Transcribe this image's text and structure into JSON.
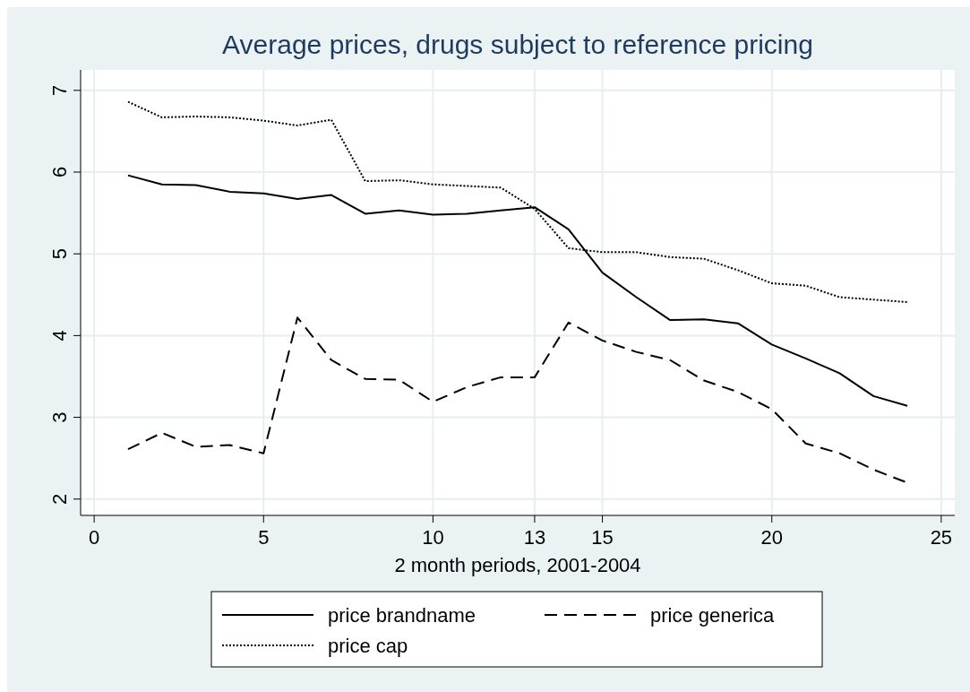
{
  "chart_data": {
    "type": "line",
    "title": "Average prices, drugs subject to reference pricing",
    "xlabel": "2 month periods, 2001-2004",
    "x": [
      1,
      2,
      3,
      4,
      5,
      6,
      7,
      8,
      9,
      10,
      11,
      12,
      13,
      14,
      15,
      16,
      17,
      18,
      19,
      20,
      21,
      22,
      23,
      24
    ],
    "series": [
      {
        "name": "price brandname",
        "color": "#000000",
        "line_style": "solid",
        "values": [
          5.96,
          5.85,
          5.84,
          5.76,
          5.74,
          5.67,
          5.72,
          5.49,
          5.53,
          5.48,
          5.49,
          5.53,
          5.57,
          5.3,
          4.77,
          4.47,
          4.19,
          4.2,
          4.15,
          3.89,
          3.72,
          3.54,
          3.26,
          3.14
        ]
      },
      {
        "name": "price generica",
        "color": "#000000",
        "line_style": "dashed",
        "values": [
          2.61,
          2.81,
          2.64,
          2.66,
          2.56,
          4.22,
          3.7,
          3.47,
          3.46,
          3.19,
          3.37,
          3.49,
          3.49,
          4.16,
          3.94,
          3.8,
          3.7,
          3.45,
          3.31,
          3.1,
          2.68,
          2.56,
          2.36,
          2.2
        ]
      },
      {
        "name": "price cap",
        "color": "#000000",
        "line_style": "dotted",
        "values": [
          6.86,
          6.67,
          6.68,
          6.67,
          6.63,
          6.57,
          6.64,
          5.89,
          5.9,
          5.85,
          5.83,
          5.81,
          5.55,
          5.07,
          5.02,
          5.02,
          4.96,
          4.94,
          4.8,
          4.64,
          4.61,
          4.47,
          4.44,
          4.41
        ]
      }
    ],
    "xlim": [
      -0.4,
      25.4
    ],
    "xticks": [
      0,
      5,
      10,
      13,
      15,
      20,
      25
    ],
    "ylim": [
      1.8,
      7.25
    ],
    "yticks": [
      2,
      3,
      4,
      5,
      6,
      7
    ],
    "grid": true,
    "legend": "bottom"
  }
}
